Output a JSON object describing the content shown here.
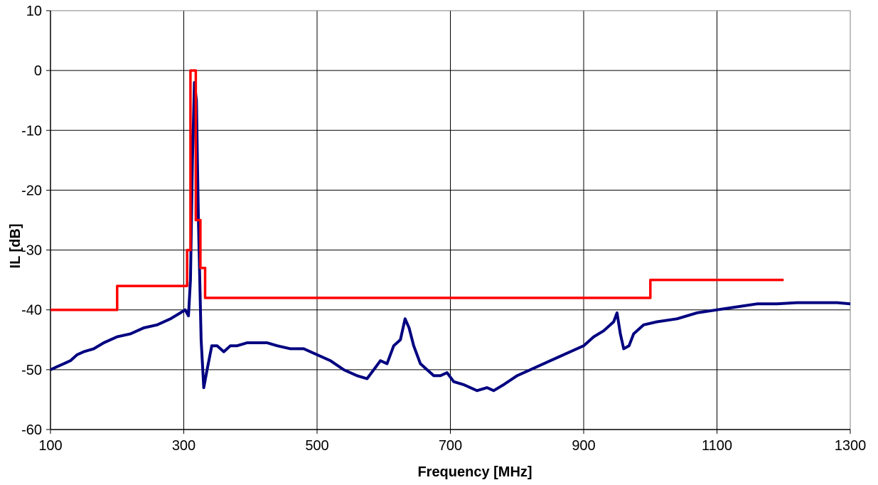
{
  "chart_data": {
    "type": "line",
    "title": "",
    "xlabel": "Frequency [MHz]",
    "ylabel": "IL [dB]",
    "xlim": [
      100,
      1300
    ],
    "ylim": [
      -60,
      10
    ],
    "grid": true,
    "x_tick_labels": [
      "100",
      "300",
      "500",
      "700",
      "900",
      "1100",
      "1300"
    ],
    "y_tick_labels": [
      "10",
      "0",
      "-10",
      "-20",
      "-30",
      "-40",
      "-50",
      "-60"
    ],
    "series": [
      {
        "color": "#000080",
        "x": [
          100,
          110,
          120,
          130,
          140,
          150,
          165,
          180,
          200,
          220,
          240,
          260,
          280,
          295,
          302,
          307,
          310,
          313,
          316,
          319,
          322,
          326,
          330,
          335,
          342,
          350,
          360,
          370,
          380,
          395,
          410,
          425,
          440,
          460,
          480,
          500,
          520,
          540,
          560,
          575,
          585,
          595,
          605,
          615,
          625,
          632,
          638,
          645,
          655,
          665,
          675,
          685,
          695,
          705,
          720,
          740,
          755,
          765,
          780,
          800,
          820,
          840,
          860,
          880,
          900,
          915,
          930,
          945,
          950,
          955,
          960,
          968,
          975,
          990,
          1010,
          1040,
          1070,
          1100,
          1130,
          1160,
          1190,
          1220,
          1250,
          1280,
          1300
        ],
        "y": [
          -50,
          -49.5,
          -49,
          -48.5,
          -47.5,
          -47,
          -46.5,
          -45.5,
          -44.5,
          -44,
          -43,
          -42.5,
          -41.5,
          -40.5,
          -40,
          -41,
          -35,
          -15,
          -2,
          -5,
          -25,
          -45,
          -53,
          -50,
          -46,
          -46,
          -47,
          -46,
          -46,
          -45.5,
          -45.5,
          -45.5,
          -46,
          -46.5,
          -46.5,
          -47.5,
          -48.5,
          -50,
          -51,
          -51.5,
          -50,
          -48.5,
          -49,
          -46,
          -45,
          -41.5,
          -43,
          -46,
          -49,
          -50,
          -51,
          -51,
          -50.5,
          -52,
          -52.5,
          -53.5,
          -53,
          -53.5,
          -52.5,
          -51,
          -50,
          -49,
          -48,
          -47,
          -46,
          -44.5,
          -43.5,
          -42,
          -40.5,
          -44,
          -46.5,
          -46,
          -44,
          -42.5,
          -42,
          -41.5,
          -40.5,
          -40,
          -39.5,
          -39,
          -39,
          -38.8,
          -38.8,
          -38.8,
          -39
        ]
      },
      {
        "color": "#ff0000",
        "x": [
          100,
          200,
          200,
          300,
          300,
          305,
          305,
          310,
          310,
          318,
          318,
          325,
          325,
          332,
          332,
          335,
          335,
          1000,
          1000,
          1200
        ],
        "y": [
          -40,
          -40,
          -36,
          -36,
          -36,
          -36,
          -30,
          -30,
          0,
          0,
          -25,
          -25,
          -33,
          -33,
          -38,
          -38,
          -38,
          -38,
          -35,
          -35
        ]
      }
    ]
  }
}
